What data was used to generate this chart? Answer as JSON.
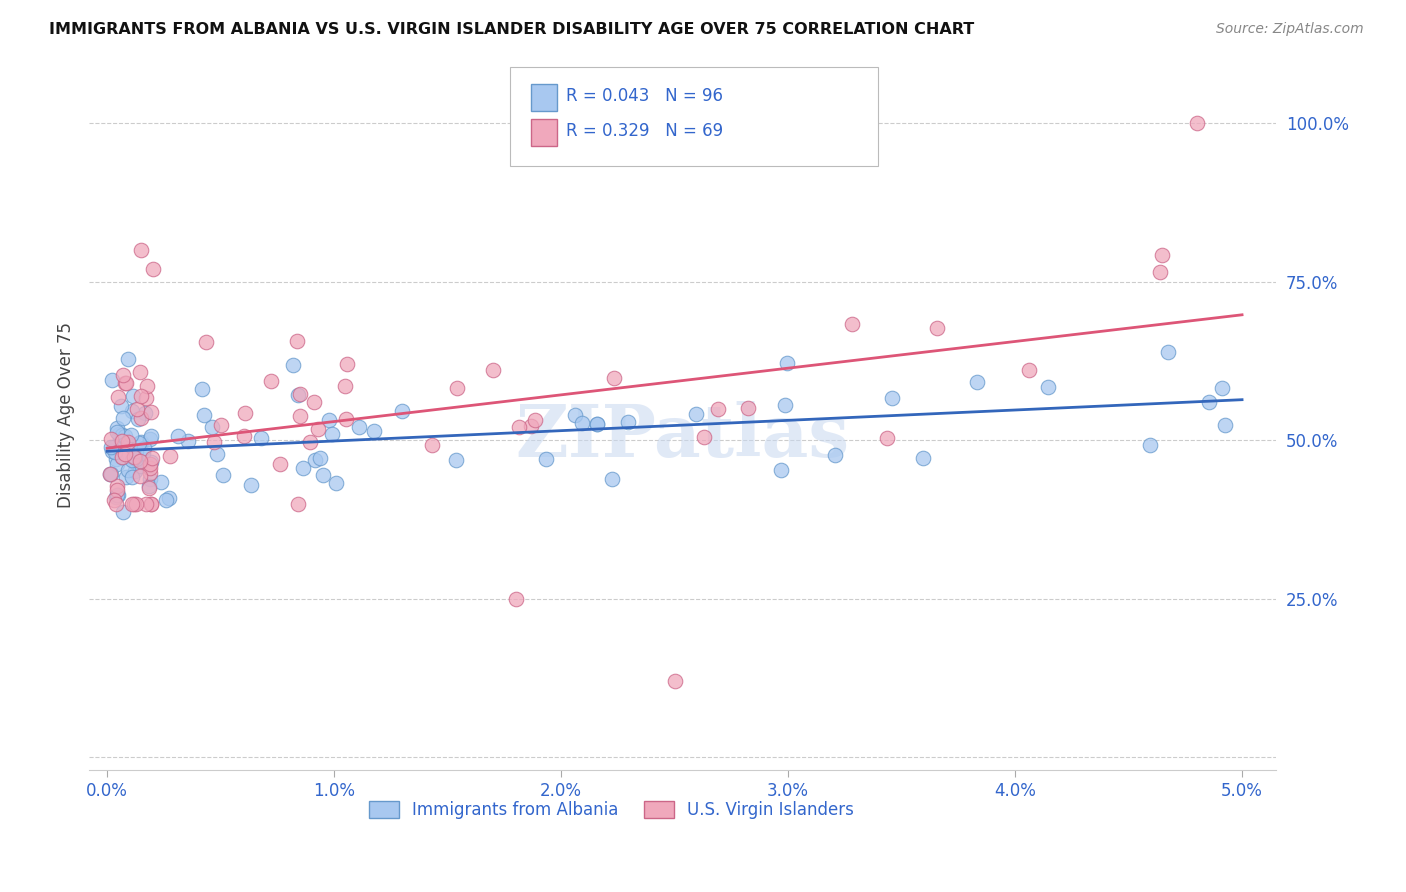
{
  "title": "IMMIGRANTS FROM ALBANIA VS U.S. VIRGIN ISLANDER DISABILITY AGE OVER 75 CORRELATION CHART",
  "source": "Source: ZipAtlas.com",
  "ylabel": "Disability Age Over 75",
  "color_blue": "#a8c8f0",
  "color_blue_edge": "#6699cc",
  "color_pink": "#f0a8bc",
  "color_pink_edge": "#cc6688",
  "line_blue": "#3366bb",
  "line_pink": "#dd5577",
  "axis_color": "#3366cc",
  "grid_color": "#cccccc",
  "label1": "Immigrants from Albania",
  "label2": "U.S. Virgin Islanders",
  "watermark": "ZIPatlas",
  "legend_text1": "R = 0.043   N = 96",
  "legend_text2": "R = 0.329   N = 69"
}
